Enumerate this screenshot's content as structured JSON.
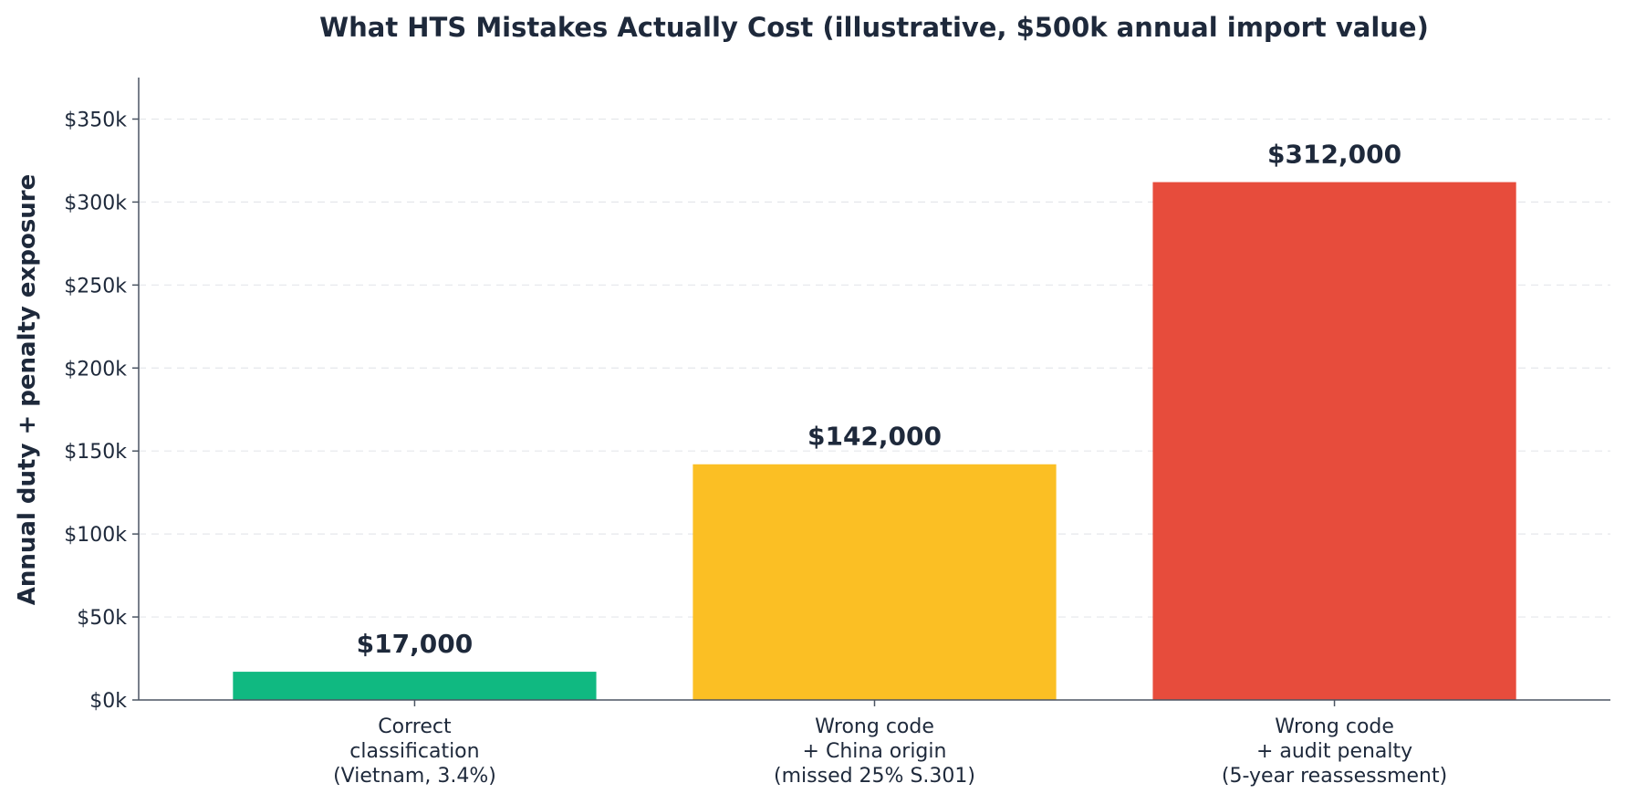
{
  "chart_data": {
    "type": "bar",
    "title": "What HTS Mistakes Actually Cost (illustrative, $500k annual import value)",
    "xlabel": "",
    "ylabel": "Annual duty + penalty exposure",
    "categories": [
      [
        "Correct",
        "classification",
        "(Vietnam, 3.4%)"
      ],
      [
        "Wrong code",
        "+ China origin",
        "(missed 25% S.301)"
      ],
      [
        "Wrong code",
        "+ audit penalty",
        "(5-year reassessment)"
      ]
    ],
    "values": [
      17000,
      142000,
      312000
    ],
    "value_labels": [
      "$17,000",
      "$142,000",
      "$312,000"
    ],
    "colors": [
      "#10b981",
      "#fbbf24",
      "#e74c3c"
    ],
    "ylim": [
      0,
      375000
    ],
    "yticks": [
      0,
      50000,
      100000,
      150000,
      200000,
      250000,
      300000,
      350000
    ],
    "ytick_labels": [
      "$0k",
      "$50k",
      "$100k",
      "$150k",
      "$200k",
      "$250k",
      "$300k",
      "$350k"
    ],
    "grid": "y-dashed",
    "legend": "none"
  }
}
